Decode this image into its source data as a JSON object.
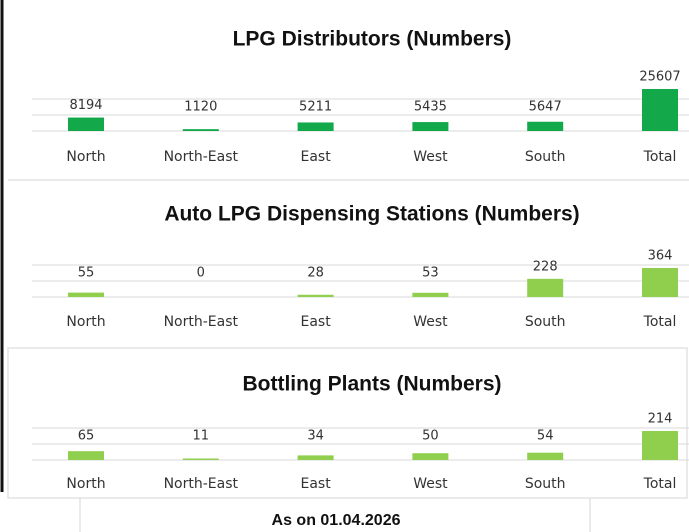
{
  "chart_data": [
    {
      "type": "bar",
      "title": "LPG Distributors (Numbers)",
      "categories": [
        "North",
        "North-East",
        "East",
        "West",
        "South",
        "Total"
      ],
      "values": [
        8194,
        1120,
        5211,
        5435,
        5647,
        25607
      ],
      "color": "#13a84a"
    },
    {
      "type": "bar",
      "title": "Auto LPG Dispensing Stations (Numbers)",
      "categories": [
        "North",
        "North-East",
        "East",
        "West",
        "South",
        "Total"
      ],
      "values": [
        55,
        0,
        28,
        53,
        228,
        364
      ],
      "color": "#8fcf4d"
    },
    {
      "type": "bar",
      "title": "Bottling Plants (Numbers)",
      "categories": [
        "North",
        "North-East",
        "East",
        "West",
        "South",
        "Total"
      ],
      "values": [
        65,
        11,
        34,
        50,
        54,
        214
      ],
      "color": "#8fcf4d"
    }
  ],
  "footer": "As on 01.04.2026"
}
